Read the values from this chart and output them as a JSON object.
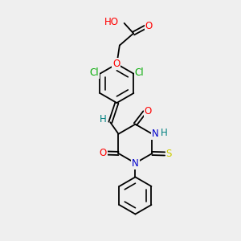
{
  "bg_color": "#efefef",
  "bond_color": "#000000",
  "atom_colors": {
    "O": "#ff0000",
    "N": "#0000cd",
    "S": "#cccc00",
    "Cl": "#00aa00",
    "H_label": "#008080",
    "C": "#000000"
  },
  "font_size_atom": 8.5,
  "line_width": 1.3,
  "fig_w": 3.0,
  "fig_h": 3.0,
  "dpi": 100,
  "xlim": [
    0,
    10
  ],
  "ylim": [
    0,
    13
  ]
}
